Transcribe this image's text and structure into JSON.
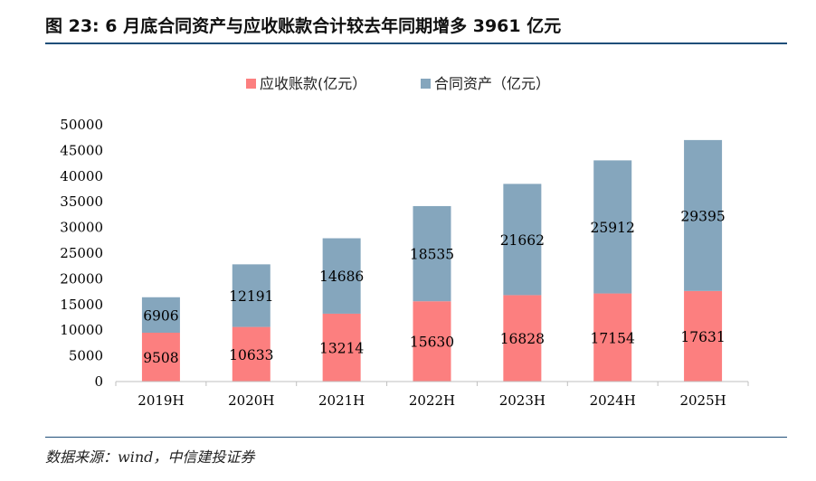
{
  "figure": {
    "title": "图 23: 6 月底合同资产与应收账款合计较去年同期增多 3961 亿元",
    "source": "数据来源：wind，中信建投证券"
  },
  "colors": {
    "receivables": "#fc7f7f",
    "contract_assets": "#85a6bd",
    "rule": "#1f4e79",
    "axis": "#bfbfbf"
  },
  "chart_data": {
    "type": "bar",
    "stacked": true,
    "title": "",
    "xlabel": "",
    "ylabel": "",
    "categories": [
      "2019H",
      "2020H",
      "2021H",
      "2022H",
      "2023H",
      "2024H",
      "2025H"
    ],
    "series": [
      {
        "name": "应收账款(亿元）",
        "values": [
          9508,
          10633,
          13214,
          15630,
          16828,
          17154,
          17631
        ]
      },
      {
        "name": "合同资产（亿元）",
        "values": [
          6906,
          12191,
          14686,
          18535,
          21662,
          25912,
          29395
        ]
      }
    ],
    "ylim": [
      0,
      50000
    ],
    "yticks": [
      0,
      5000,
      10000,
      15000,
      20000,
      25000,
      30000,
      35000,
      40000,
      45000,
      50000
    ],
    "grid": false,
    "legend": "top-center",
    "data_labels": true
  }
}
